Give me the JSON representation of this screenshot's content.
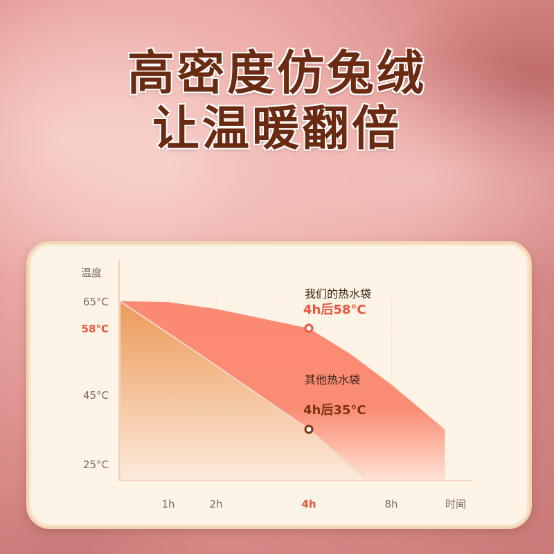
{
  "headline": {
    "line1": "高密度仿兔绒",
    "line2": "让温暖翻倍"
  },
  "chart_data": {
    "type": "area",
    "ylabel": "温度",
    "xlabel": "时间",
    "y_ticks": [
      "65°C",
      "58°C",
      "45°C",
      "25°C"
    ],
    "y_tick_values": [
      65,
      58,
      45,
      25
    ],
    "x_ticks": [
      "1h",
      "2h",
      "4h",
      "8h"
    ],
    "x_tick_values": [
      1,
      2,
      4,
      8
    ],
    "highlight_color": "#e8553a",
    "series": [
      {
        "name": "我们的热水袋",
        "color": "#f7836a",
        "points": [
          [
            0,
            65
          ],
          [
            1,
            64.8
          ],
          [
            2,
            63
          ],
          [
            4,
            58
          ],
          [
            6,
            53
          ],
          [
            8,
            47
          ],
          [
            10.6,
            35
          ]
        ],
        "annotation": {
          "title": "我们的热水袋",
          "text": "4h后58°C",
          "x": 4,
          "y": 58
        }
      },
      {
        "name": "其他热水袋",
        "color": "#eda05e",
        "points": [
          [
            0,
            65
          ],
          [
            1,
            57
          ],
          [
            2,
            50.7
          ],
          [
            4,
            35
          ],
          [
            6.7,
            21
          ]
        ],
        "annotation": {
          "title": "其他热水袋",
          "text": "4h后35°C",
          "x": 4,
          "y": 35
        }
      }
    ]
  }
}
